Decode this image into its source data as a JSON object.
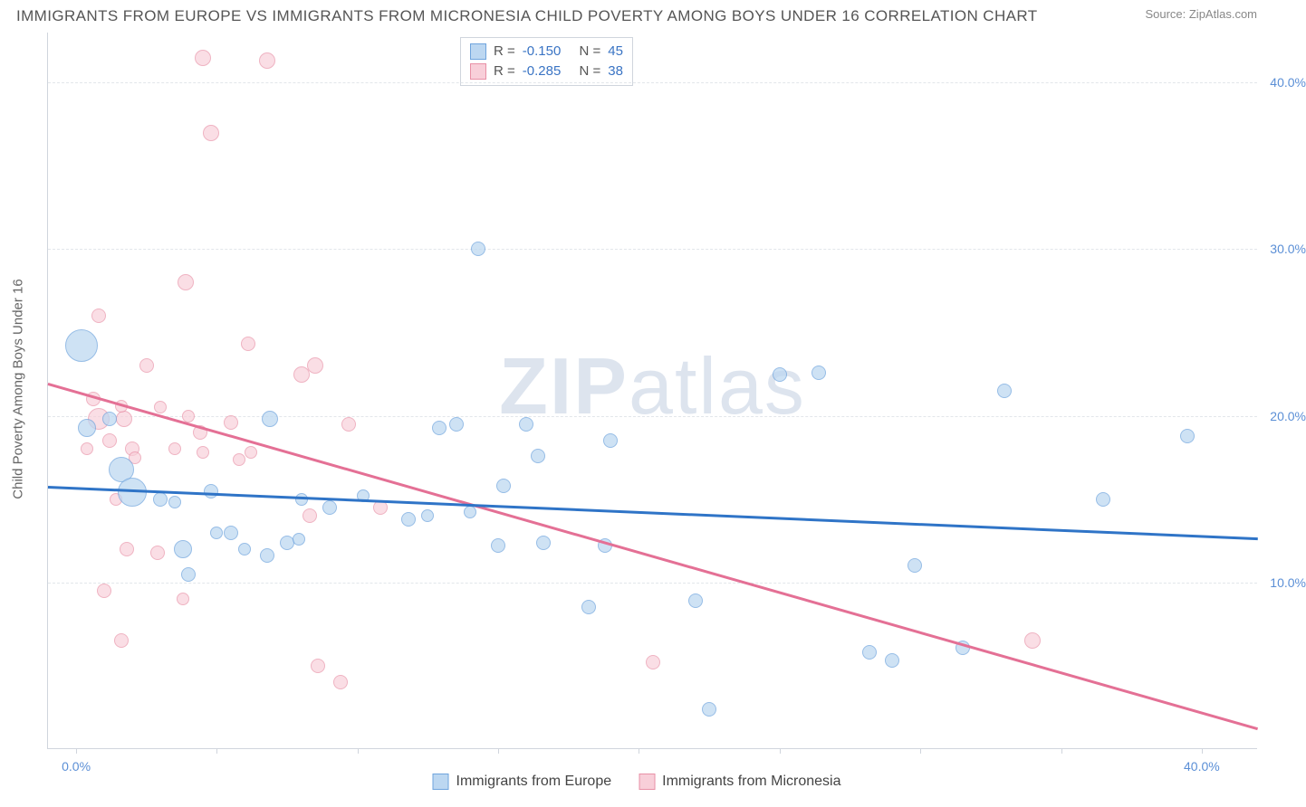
{
  "header": {
    "title": "IMMIGRANTS FROM EUROPE VS IMMIGRANTS FROM MICRONESIA CHILD POVERTY AMONG BOYS UNDER 16 CORRELATION CHART",
    "source": "Source: ZipAtlas.com"
  },
  "watermark": {
    "zip": "ZIP",
    "atlas": "atlas"
  },
  "chart": {
    "type": "scatter",
    "ylabel": "Child Poverty Among Boys Under 16",
    "xlim": [
      -1,
      42
    ],
    "ylim": [
      0,
      43
    ],
    "y_ticks": [
      10.0,
      20.0,
      30.0,
      40.0
    ],
    "y_tick_labels": [
      "10.0%",
      "20.0%",
      "30.0%",
      "40.0%"
    ],
    "x_ticks": [
      0,
      5,
      10,
      15,
      20,
      25,
      30,
      35,
      40
    ],
    "x_tick_labels": {
      "0": "0.0%",
      "40": "40.0%"
    },
    "axis_color": "#d0d5dd",
    "grid_color": "#e2e6ea",
    "tick_label_color": "#5b8fd6",
    "background_color": "#ffffff",
    "label_fontsize": 15
  },
  "series": {
    "europe": {
      "label": "Immigrants from Europe",
      "fill": "#bcd7f1",
      "stroke": "#6fa4dd",
      "line_color": "#2f74c7",
      "opacity": 0.72,
      "R": "-0.150",
      "N": "45",
      "trend": {
        "x1": -1,
        "y1": 15.8,
        "x2": 42,
        "y2": 12.7
      },
      "points": [
        {
          "x": 0.2,
          "y": 24.2,
          "r": 18
        },
        {
          "x": 1.6,
          "y": 16.8,
          "r": 14
        },
        {
          "x": 2.0,
          "y": 15.4,
          "r": 16
        },
        {
          "x": 14.3,
          "y": 30.0,
          "r": 8
        },
        {
          "x": 3.8,
          "y": 12.0,
          "r": 10
        },
        {
          "x": 5.5,
          "y": 13.0,
          "r": 8
        },
        {
          "x": 4.0,
          "y": 10.5,
          "r": 8
        },
        {
          "x": 6.8,
          "y": 11.6,
          "r": 8
        },
        {
          "x": 7.5,
          "y": 12.4,
          "r": 8
        },
        {
          "x": 7.9,
          "y": 12.6,
          "r": 7
        },
        {
          "x": 6.9,
          "y": 19.8,
          "r": 9
        },
        {
          "x": 9.0,
          "y": 14.5,
          "r": 8
        },
        {
          "x": 10.2,
          "y": 15.2,
          "r": 7
        },
        {
          "x": 11.8,
          "y": 13.8,
          "r": 8
        },
        {
          "x": 12.9,
          "y": 19.3,
          "r": 8
        },
        {
          "x": 13.5,
          "y": 19.5,
          "r": 8
        },
        {
          "x": 15.0,
          "y": 12.2,
          "r": 8
        },
        {
          "x": 15.2,
          "y": 15.8,
          "r": 8
        },
        {
          "x": 16.0,
          "y": 19.5,
          "r": 8
        },
        {
          "x": 16.6,
          "y": 12.4,
          "r": 8
        },
        {
          "x": 16.4,
          "y": 17.6,
          "r": 8
        },
        {
          "x": 18.2,
          "y": 8.5,
          "r": 8
        },
        {
          "x": 18.8,
          "y": 12.2,
          "r": 8
        },
        {
          "x": 19.0,
          "y": 18.5,
          "r": 8
        },
        {
          "x": 22.0,
          "y": 8.9,
          "r": 8
        },
        {
          "x": 22.5,
          "y": 2.4,
          "r": 8
        },
        {
          "x": 25.0,
          "y": 22.5,
          "r": 8
        },
        {
          "x": 26.4,
          "y": 22.6,
          "r": 8
        },
        {
          "x": 28.2,
          "y": 5.8,
          "r": 8
        },
        {
          "x": 29.0,
          "y": 5.3,
          "r": 8
        },
        {
          "x": 29.8,
          "y": 11.0,
          "r": 8
        },
        {
          "x": 31.5,
          "y": 6.1,
          "r": 8
        },
        {
          "x": 33.0,
          "y": 21.5,
          "r": 8
        },
        {
          "x": 36.5,
          "y": 15.0,
          "r": 8
        },
        {
          "x": 39.5,
          "y": 18.8,
          "r": 8
        },
        {
          "x": 3.0,
          "y": 15.0,
          "r": 8
        },
        {
          "x": 4.8,
          "y": 15.5,
          "r": 8
        },
        {
          "x": 1.2,
          "y": 19.8,
          "r": 8
        },
        {
          "x": 0.4,
          "y": 19.3,
          "r": 10
        },
        {
          "x": 12.5,
          "y": 14.0,
          "r": 7
        },
        {
          "x": 14.0,
          "y": 14.2,
          "r": 7
        },
        {
          "x": 8.0,
          "y": 15.0,
          "r": 7
        },
        {
          "x": 5.0,
          "y": 13.0,
          "r": 7
        },
        {
          "x": 6.0,
          "y": 12.0,
          "r": 7
        },
        {
          "x": 3.5,
          "y": 14.8,
          "r": 7
        }
      ]
    },
    "micronesia": {
      "label": "Immigrants from Micronesia",
      "fill": "#f8cfd9",
      "stroke": "#e890a6",
      "line_color": "#e47095",
      "opacity": 0.68,
      "R": "-0.285",
      "N": "38",
      "trend": {
        "x1": -1,
        "y1": 22.0,
        "x2": 42,
        "y2": 1.3
      },
      "points": [
        {
          "x": 4.5,
          "y": 41.5,
          "r": 9
        },
        {
          "x": 6.8,
          "y": 41.3,
          "r": 9
        },
        {
          "x": 4.8,
          "y": 37.0,
          "r": 9
        },
        {
          "x": 0.8,
          "y": 26.0,
          "r": 8
        },
        {
          "x": 3.9,
          "y": 28.0,
          "r": 9
        },
        {
          "x": 2.5,
          "y": 23.0,
          "r": 8
        },
        {
          "x": 0.6,
          "y": 21.0,
          "r": 8
        },
        {
          "x": 6.1,
          "y": 24.3,
          "r": 8
        },
        {
          "x": 1.7,
          "y": 19.8,
          "r": 9
        },
        {
          "x": 0.8,
          "y": 19.8,
          "r": 12
        },
        {
          "x": 1.2,
          "y": 18.5,
          "r": 8
        },
        {
          "x": 2.0,
          "y": 18.0,
          "r": 8
        },
        {
          "x": 2.1,
          "y": 17.5,
          "r": 7
        },
        {
          "x": 4.4,
          "y": 19.0,
          "r": 8
        },
        {
          "x": 5.5,
          "y": 19.6,
          "r": 8
        },
        {
          "x": 8.0,
          "y": 22.5,
          "r": 9
        },
        {
          "x": 8.5,
          "y": 23.0,
          "r": 9
        },
        {
          "x": 9.7,
          "y": 19.5,
          "r": 8
        },
        {
          "x": 1.4,
          "y": 15.0,
          "r": 7
        },
        {
          "x": 1.8,
          "y": 12.0,
          "r": 8
        },
        {
          "x": 2.9,
          "y": 11.8,
          "r": 8
        },
        {
          "x": 3.5,
          "y": 18.0,
          "r": 7
        },
        {
          "x": 4.5,
          "y": 17.8,
          "r": 7
        },
        {
          "x": 5.8,
          "y": 17.4,
          "r": 7
        },
        {
          "x": 1.0,
          "y": 9.5,
          "r": 8
        },
        {
          "x": 1.6,
          "y": 6.5,
          "r": 8
        },
        {
          "x": 8.3,
          "y": 14.0,
          "r": 8
        },
        {
          "x": 8.6,
          "y": 5.0,
          "r": 8
        },
        {
          "x": 9.4,
          "y": 4.0,
          "r": 8
        },
        {
          "x": 20.5,
          "y": 5.2,
          "r": 8
        },
        {
          "x": 34.0,
          "y": 6.5,
          "r": 9
        },
        {
          "x": 0.4,
          "y": 18.0,
          "r": 7
        },
        {
          "x": 3.0,
          "y": 20.5,
          "r": 7
        },
        {
          "x": 4.0,
          "y": 20.0,
          "r": 7
        },
        {
          "x": 6.2,
          "y": 17.8,
          "r": 7
        },
        {
          "x": 1.6,
          "y": 20.6,
          "r": 7
        },
        {
          "x": 10.8,
          "y": 14.5,
          "r": 8
        },
        {
          "x": 3.8,
          "y": 9.0,
          "r": 7
        }
      ]
    }
  },
  "legend_top": {
    "r_label": "R =",
    "n_label": "N ="
  }
}
